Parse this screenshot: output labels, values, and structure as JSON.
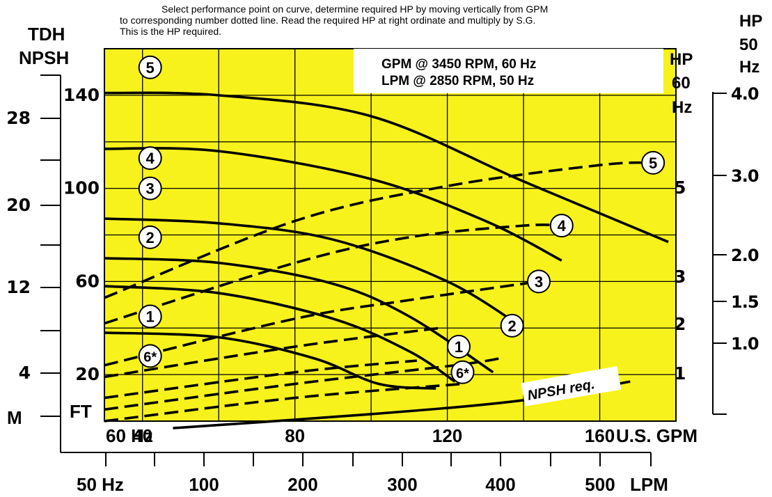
{
  "note_lines": [
    "Select performance point on curve, determine required HP by moving vertically from GPM",
    "to corresponding number dotted line. Read the required HP at right ordinate and multiply by S.G.",
    "This is the HP required."
  ],
  "info_box": [
    "GPM @ 3450 RPM, 60 Hz",
    "LPM @ 2850 RPM, 50 Hz"
  ],
  "left_labels": [
    "TDH",
    "NPSH",
    "M",
    "FT"
  ],
  "right60_labels": [
    "HP",
    "60",
    "Hz"
  ],
  "right50_labels": [
    "HP",
    "50",
    "Hz"
  ],
  "npsh_label": "NPSH req.",
  "colors": {
    "plot_bg": "#f7f21b",
    "grid": "#000000",
    "curve": "#000000"
  },
  "chart_data": {
    "type": "line",
    "x_unit": "U.S. GPM",
    "x_range": [
      30,
      180
    ],
    "x_ticks_gpm": [
      40,
      80,
      120,
      160
    ],
    "x_tick_labels_gpm": [
      "60  Hz",
      "40",
      "80",
      "120",
      "160",
      "U.S.  GPM"
    ],
    "x_ticks_lpm": [
      100,
      200,
      300,
      400,
      500
    ],
    "x_tick_labels_lpm": [
      "50 Hz",
      "100",
      "200",
      "300",
      "400",
      "500",
      "LPM"
    ],
    "y_unit_ft": "FT",
    "y_range_ft": [
      0,
      160
    ],
    "y_ticks_ft": [
      20,
      60,
      100,
      140
    ],
    "y_ticks_m": [
      4,
      12,
      20,
      28
    ],
    "hp60_ticks": [
      1,
      2,
      3,
      5
    ],
    "hp50_ticks": [
      "1.0",
      "1.5",
      "2.0",
      "3.0",
      "4.0"
    ],
    "grid": true,
    "head_curves": [
      {
        "label": "5",
        "points": [
          [
            30,
            141
          ],
          [
            60,
            140
          ],
          [
            100,
            131
          ],
          [
            140,
            103
          ],
          [
            178,
            77
          ]
        ]
      },
      {
        "label": "4",
        "points": [
          [
            30,
            117
          ],
          [
            60,
            116
          ],
          [
            100,
            104
          ],
          [
            130,
            86
          ],
          [
            150,
            69
          ]
        ]
      },
      {
        "label": "3",
        "points": [
          [
            30,
            87
          ],
          [
            60,
            85
          ],
          [
            90,
            78
          ],
          [
            120,
            60
          ],
          [
            140,
            40
          ]
        ]
      },
      {
        "label": "2",
        "points": [
          [
            30,
            70
          ],
          [
            60,
            68
          ],
          [
            90,
            59
          ],
          [
            110,
            45
          ],
          [
            132,
            21
          ]
        ]
      },
      {
        "label": "1",
        "points": [
          [
            30,
            58
          ],
          [
            60,
            55
          ],
          [
            90,
            44
          ],
          [
            110,
            30
          ],
          [
            122,
            17
          ]
        ]
      },
      {
        "label": "6*",
        "points": [
          [
            30,
            38
          ],
          [
            60,
            36
          ],
          [
            85,
            27
          ],
          [
            102,
            16
          ],
          [
            117,
            14
          ]
        ]
      }
    ],
    "hp_curves": [
      {
        "label": "5",
        "points": [
          [
            30,
            53
          ],
          [
            80,
            86
          ],
          [
            120,
            101
          ],
          [
            160,
            110
          ],
          [
            174,
            111
          ]
        ]
      },
      {
        "label": "4",
        "points": [
          [
            30,
            42
          ],
          [
            80,
            68
          ],
          [
            110,
            79
          ],
          [
            140,
            84
          ],
          [
            150,
            84
          ]
        ]
      },
      {
        "label": "3",
        "points": [
          [
            30,
            24
          ],
          [
            80,
            44
          ],
          [
            110,
            52
          ],
          [
            144,
            60
          ]
        ]
      },
      {
        "label": "1",
        "points": [
          [
            30,
            19
          ],
          [
            80,
            32
          ],
          [
            118,
            40
          ]
        ]
      },
      {
        "label": "6*",
        "points": [
          [
            30,
            10
          ],
          [
            80,
            21
          ],
          [
            112,
            26
          ]
        ]
      },
      {
        "label": "2",
        "points": [
          [
            30,
            5
          ],
          [
            80,
            16
          ],
          [
            122,
            24
          ],
          [
            134,
            27
          ]
        ]
      },
      {
        "label": "npsh-dashed",
        "points": [
          [
            30,
            0
          ],
          [
            80,
            10
          ],
          [
            124,
            16
          ]
        ]
      }
    ],
    "npsh_curve": {
      "label": "NPSH req.",
      "points": [
        [
          48,
          -3
        ],
        [
          100,
          3
        ],
        [
          140,
          9
        ],
        [
          168,
          17
        ]
      ]
    },
    "curve_labels": [
      {
        "text": "5",
        "x": 42,
        "y": 152
      },
      {
        "text": "4",
        "x": 42,
        "y": 113
      },
      {
        "text": "3",
        "x": 42,
        "y": 100
      },
      {
        "text": "2",
        "x": 42,
        "y": 79
      },
      {
        "text": "1",
        "x": 42,
        "y": 45
      },
      {
        "text": "6*",
        "x": 42,
        "y": 28
      },
      {
        "text": "5",
        "x": 174,
        "y": 111
      },
      {
        "text": "4",
        "x": 150,
        "y": 84
      },
      {
        "text": "3",
        "x": 144,
        "y": 60
      },
      {
        "text": "2",
        "x": 137,
        "y": 41
      },
      {
        "text": "1",
        "x": 123,
        "y": 32
      },
      {
        "text": "6*",
        "x": 124,
        "y": 21
      }
    ]
  }
}
